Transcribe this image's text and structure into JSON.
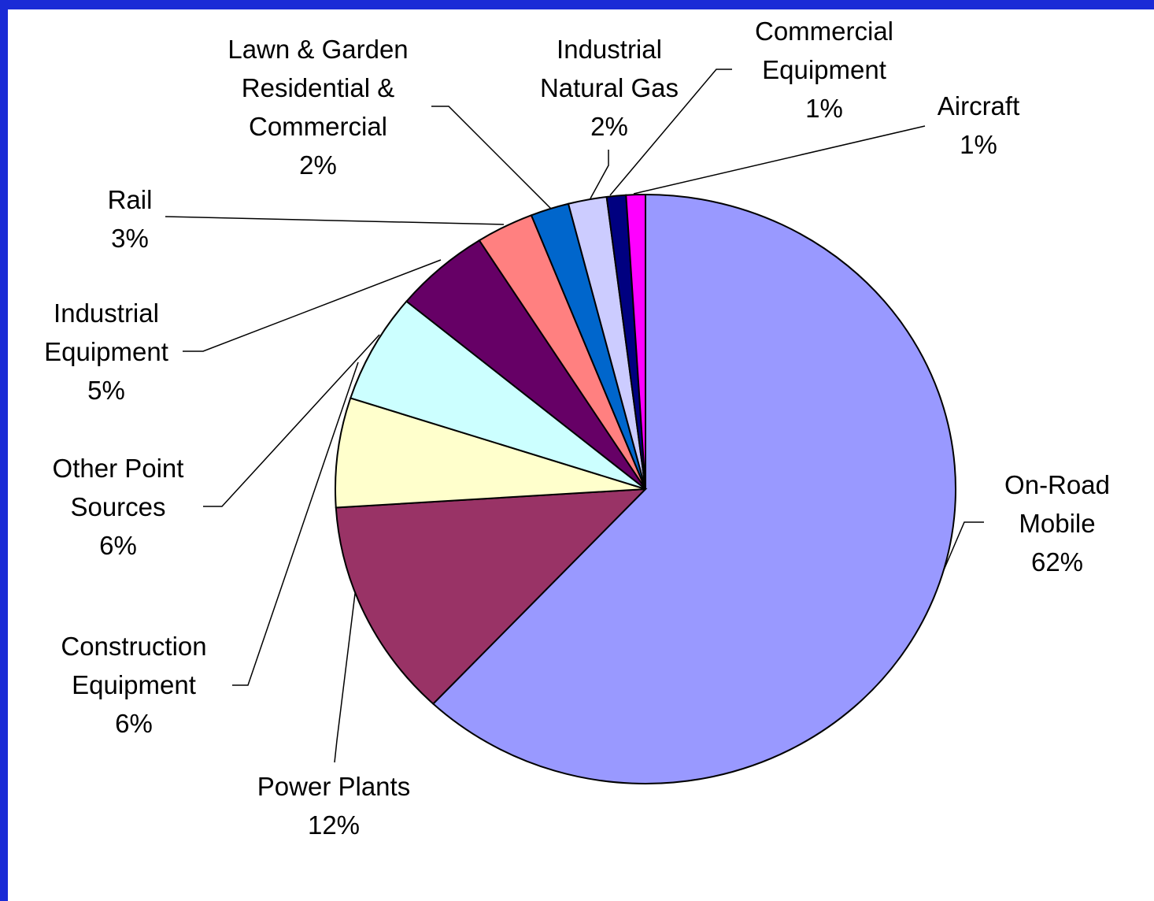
{
  "chart_data": {
    "type": "pie",
    "categories": [
      "On-Road Mobile",
      "Power Plants",
      "Construction Equipment",
      "Other Point Sources",
      "Industrial Equipment",
      "Rail",
      "Lawn & Garden Residential & Commercial",
      "Industrial Natural Gas",
      "Commercial Equipment",
      "Aircraft"
    ],
    "values": [
      62,
      12,
      6,
      6,
      5,
      3,
      2,
      2,
      1,
      1
    ],
    "value_labels": [
      "62%",
      "12%",
      "6%",
      "6%",
      "5%",
      "3%",
      "2%",
      "2%",
      "1%",
      "1%"
    ],
    "colors": [
      "#9999ff",
      "#993366",
      "#ffffcc",
      "#ccffff",
      "#660066",
      "#ff8080",
      "#0066cc",
      "#ccccff",
      "#000080",
      "#ff00ff"
    ]
  }
}
